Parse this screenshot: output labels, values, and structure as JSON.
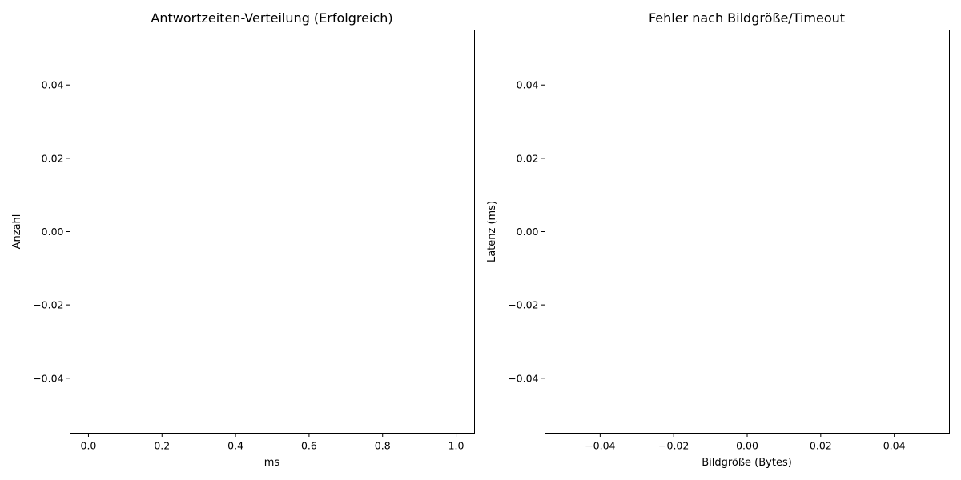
{
  "chart_data": [
    {
      "type": "histogram",
      "title": "Antwortzeiten-Verteilung (Erfolgreich)",
      "xlabel": "ms",
      "ylabel": "Anzahl",
      "xlim": [
        -0.05,
        1.05
      ],
      "ylim": [
        -0.055,
        0.055
      ],
      "xticks": [
        0.0,
        0.2,
        0.4,
        0.6,
        0.8,
        1.0
      ],
      "xtick_labels": [
        "0.0",
        "0.2",
        "0.4",
        "0.6",
        "0.8",
        "1.0"
      ],
      "yticks": [
        0.04,
        0.02,
        0.0,
        -0.02,
        -0.04
      ],
      "ytick_labels": [
        "0.04",
        "0.02",
        "0.00",
        "−0.02",
        "−0.04"
      ],
      "grid": false,
      "series": []
    },
    {
      "type": "scatter",
      "title": "Fehler nach Bildgröße/Timeout",
      "xlabel": "Bildgröße (Bytes)",
      "ylabel": "Latenz (ms)",
      "xlim": [
        -0.055,
        0.055
      ],
      "ylim": [
        -0.055,
        0.055
      ],
      "xticks": [
        -0.04,
        -0.02,
        0.0,
        0.02,
        0.04
      ],
      "xtick_labels": [
        "−0.04",
        "−0.02",
        "0.00",
        "0.02",
        "0.04"
      ],
      "yticks": [
        0.04,
        0.02,
        0.0,
        -0.02,
        -0.04
      ],
      "ytick_labels": [
        "0.04",
        "0.02",
        "0.00",
        "−0.02",
        "−0.04"
      ],
      "grid": false,
      "series": []
    }
  ]
}
